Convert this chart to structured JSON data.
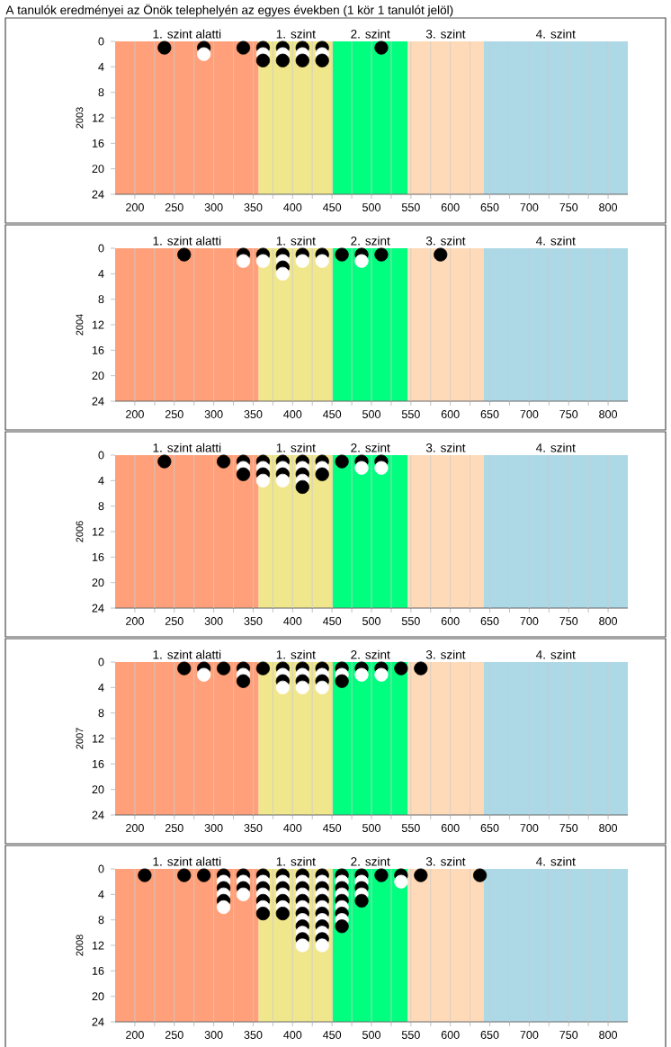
{
  "chart_data": [
    {
      "type": "scatter",
      "title": "A tanulók eredményei az Önök telephelyén az egyes években (1 kör 1 tanulót jelöl)",
      "ylabel": "2003",
      "xlim": [
        175,
        825
      ],
      "ylim": [
        24,
        0
      ],
      "marker": "circle",
      "grid": "x",
      "xticks": [
        200,
        {
          "value": 225,
          "label": null
        },
        250,
        {
          "value": 275,
          "label": null
        },
        300,
        {
          "value": 325,
          "label": null
        },
        350,
        {
          "value": 375,
          "label": null
        },
        400,
        {
          "value": 425,
          "label": null
        },
        450,
        {
          "value": 475,
          "label": null
        },
        500,
        {
          "value": 525,
          "label": null
        },
        550,
        {
          "value": 575,
          "label": null
        },
        600,
        {
          "value": 625,
          "label": null
        },
        650,
        {
          "value": 675,
          "label": null
        },
        700,
        {
          "value": 725,
          "label": null
        },
        750,
        {
          "value": 775,
          "label": null
        },
        800
      ],
      "yticks": [
        0,
        4,
        8,
        12,
        16,
        20,
        24
      ],
      "bands": [
        {
          "axis": "x",
          "from": 175,
          "to": 357,
          "label": "1. szint alatti",
          "color": "#ffa07a"
        },
        {
          "axis": "x",
          "from": 357,
          "to": 451,
          "label": "1. szint",
          "color": "#f0e68c"
        },
        {
          "axis": "x",
          "from": 451,
          "to": 546,
          "label": "2. szint",
          "color": "#00ff7f"
        },
        {
          "axis": "x",
          "from": 546,
          "to": 642,
          "label": "3. szint",
          "color": "#ffdab9"
        },
        {
          "axis": "x",
          "from": 642,
          "to": 825,
          "label": "4. szint",
          "color": "#add8e6"
        }
      ],
      "series": [
        {
          "color": "#000000",
          "x": [
            237.5,
            287.5,
            337.5,
            362.5,
            362.5,
            387.5,
            387.5,
            412.5,
            412.5,
            437.5,
            437.5,
            512.5
          ],
          "values": [
            1,
            1,
            1,
            1,
            3,
            1,
            3,
            1,
            3,
            1,
            3,
            1
          ]
        },
        {
          "color": "#ffffff",
          "x": [
            287.5,
            362.5,
            387.5,
            412.5,
            437.5
          ],
          "values": [
            2,
            2,
            2,
            2,
            2
          ]
        }
      ]
    },
    {
      "type": "scatter",
      "ylabel": "2004",
      "xlim": [
        175,
        825
      ],
      "ylim": [
        24,
        0
      ],
      "marker": "circle",
      "grid": "x",
      "xticks": [
        200,
        {
          "value": 225,
          "label": null
        },
        250,
        {
          "value": 275,
          "label": null
        },
        300,
        {
          "value": 325,
          "label": null
        },
        350,
        {
          "value": 375,
          "label": null
        },
        400,
        {
          "value": 425,
          "label": null
        },
        450,
        {
          "value": 475,
          "label": null
        },
        500,
        {
          "value": 525,
          "label": null
        },
        550,
        {
          "value": 575,
          "label": null
        },
        600,
        {
          "value": 625,
          "label": null
        },
        650,
        {
          "value": 675,
          "label": null
        },
        700,
        {
          "value": 725,
          "label": null
        },
        750,
        {
          "value": 775,
          "label": null
        },
        800
      ],
      "yticks": [
        0,
        4,
        8,
        12,
        16,
        20,
        24
      ],
      "bands": [
        {
          "axis": "x",
          "from": 175,
          "to": 357,
          "label": "1. szint alatti",
          "color": "#ffa07a"
        },
        {
          "axis": "x",
          "from": 357,
          "to": 451,
          "label": "1. szint",
          "color": "#f0e68c"
        },
        {
          "axis": "x",
          "from": 451,
          "to": 546,
          "label": "2. szint",
          "color": "#00ff7f"
        },
        {
          "axis": "x",
          "from": 546,
          "to": 642,
          "label": "3. szint",
          "color": "#ffdab9"
        },
        {
          "axis": "x",
          "from": 642,
          "to": 825,
          "label": "4. szint",
          "color": "#add8e6"
        }
      ],
      "series": [
        {
          "color": "#000000",
          "x": [
            262.5,
            337.5,
            362.5,
            387.5,
            387.5,
            412.5,
            437.5,
            462.5,
            487.5,
            512.5,
            587.5
          ],
          "values": [
            1,
            1,
            1,
            1,
            3,
            1,
            1,
            1,
            1,
            1,
            1
          ]
        },
        {
          "color": "#ffffff",
          "x": [
            337.5,
            362.5,
            387.5,
            387.5,
            412.5,
            437.5,
            487.5
          ],
          "values": [
            2,
            2,
            2,
            4,
            2,
            2,
            2
          ]
        }
      ]
    },
    {
      "type": "scatter",
      "ylabel": "2006",
      "xlim": [
        175,
        825
      ],
      "ylim": [
        24,
        0
      ],
      "marker": "circle",
      "grid": "x",
      "xticks": [
        200,
        {
          "value": 225,
          "label": null
        },
        250,
        {
          "value": 275,
          "label": null
        },
        300,
        {
          "value": 325,
          "label": null
        },
        350,
        {
          "value": 375,
          "label": null
        },
        400,
        {
          "value": 425,
          "label": null
        },
        450,
        {
          "value": 475,
          "label": null
        },
        500,
        {
          "value": 525,
          "label": null
        },
        550,
        {
          "value": 575,
          "label": null
        },
        600,
        {
          "value": 625,
          "label": null
        },
        650,
        {
          "value": 675,
          "label": null
        },
        700,
        {
          "value": 725,
          "label": null
        },
        750,
        {
          "value": 775,
          "label": null
        },
        800
      ],
      "yticks": [
        0,
        4,
        8,
        12,
        16,
        20,
        24
      ],
      "bands": [
        {
          "axis": "x",
          "from": 175,
          "to": 357,
          "label": "1. szint alatti",
          "color": "#ffa07a"
        },
        {
          "axis": "x",
          "from": 357,
          "to": 451,
          "label": "1. szint",
          "color": "#f0e68c"
        },
        {
          "axis": "x",
          "from": 451,
          "to": 546,
          "label": "2. szint",
          "color": "#00ff7f"
        },
        {
          "axis": "x",
          "from": 546,
          "to": 642,
          "label": "3. szint",
          "color": "#ffdab9"
        },
        {
          "axis": "x",
          "from": 642,
          "to": 825,
          "label": "4. szint",
          "color": "#add8e6"
        }
      ],
      "series": [
        {
          "color": "#000000",
          "x": [
            237.5,
            312.5,
            337.5,
            337.5,
            362.5,
            362.5,
            387.5,
            387.5,
            412.5,
            412.5,
            412.5,
            437.5,
            437.5,
            462.5,
            487.5,
            512.5
          ],
          "values": [
            1,
            1,
            1,
            3,
            1,
            3,
            1,
            3,
            1,
            3,
            5,
            1,
            3,
            1,
            1,
            1
          ]
        },
        {
          "color": "#ffffff",
          "x": [
            337.5,
            362.5,
            362.5,
            387.5,
            387.5,
            412.5,
            412.5,
            437.5,
            487.5,
            512.5
          ],
          "values": [
            2,
            2,
            4,
            2,
            4,
            2,
            4,
            2,
            2,
            2
          ]
        }
      ]
    },
    {
      "type": "scatter",
      "ylabel": "2007",
      "xlim": [
        175,
        825
      ],
      "ylim": [
        24,
        0
      ],
      "marker": "circle",
      "grid": "x",
      "xticks": [
        200,
        {
          "value": 225,
          "label": null
        },
        250,
        {
          "value": 275,
          "label": null
        },
        300,
        {
          "value": 325,
          "label": null
        },
        350,
        {
          "value": 375,
          "label": null
        },
        400,
        {
          "value": 425,
          "label": null
        },
        450,
        {
          "value": 475,
          "label": null
        },
        500,
        {
          "value": 525,
          "label": null
        },
        550,
        {
          "value": 575,
          "label": null
        },
        600,
        {
          "value": 625,
          "label": null
        },
        650,
        {
          "value": 675,
          "label": null
        },
        700,
        {
          "value": 725,
          "label": null
        },
        750,
        {
          "value": 775,
          "label": null
        },
        800
      ],
      "yticks": [
        0,
        4,
        8,
        12,
        16,
        20,
        24
      ],
      "bands": [
        {
          "axis": "x",
          "from": 175,
          "to": 357,
          "label": "1. szint alatti",
          "color": "#ffa07a"
        },
        {
          "axis": "x",
          "from": 357,
          "to": 451,
          "label": "1. szint",
          "color": "#f0e68c"
        },
        {
          "axis": "x",
          "from": 451,
          "to": 546,
          "label": "2. szint",
          "color": "#00ff7f"
        },
        {
          "axis": "x",
          "from": 546,
          "to": 642,
          "label": "3. szint",
          "color": "#ffdab9"
        },
        {
          "axis": "x",
          "from": 642,
          "to": 825,
          "label": "4. szint",
          "color": "#add8e6"
        }
      ],
      "series": [
        {
          "color": "#000000",
          "x": [
            262.5,
            287.5,
            312.5,
            337.5,
            337.5,
            362.5,
            387.5,
            387.5,
            412.5,
            412.5,
            437.5,
            437.5,
            462.5,
            462.5,
            487.5,
            512.5,
            537.5,
            562.5
          ],
          "values": [
            1,
            1,
            1,
            1,
            3,
            1,
            1,
            3,
            1,
            3,
            1,
            3,
            1,
            3,
            1,
            1,
            1,
            1
          ]
        },
        {
          "color": "#ffffff",
          "x": [
            287.5,
            337.5,
            387.5,
            387.5,
            412.5,
            412.5,
            437.5,
            437.5,
            462.5,
            487.5,
            512.5
          ],
          "values": [
            2,
            2,
            2,
            4,
            2,
            4,
            2,
            4,
            2,
            2,
            2
          ]
        }
      ]
    },
    {
      "type": "scatter",
      "ylabel": "2008",
      "xlim": [
        175,
        825
      ],
      "ylim": [
        24,
        0
      ],
      "marker": "circle",
      "grid": "x",
      "xticks": [
        200,
        {
          "value": 225,
          "label": null
        },
        250,
        {
          "value": 275,
          "label": null
        },
        300,
        {
          "value": 325,
          "label": null
        },
        350,
        {
          "value": 375,
          "label": null
        },
        400,
        {
          "value": 425,
          "label": null
        },
        450,
        {
          "value": 475,
          "label": null
        },
        500,
        {
          "value": 525,
          "label": null
        },
        550,
        {
          "value": 575,
          "label": null
        },
        600,
        {
          "value": 625,
          "label": null
        },
        650,
        {
          "value": 675,
          "label": null
        },
        700,
        {
          "value": 725,
          "label": null
        },
        750,
        {
          "value": 775,
          "label": null
        },
        800
      ],
      "yticks": [
        0,
        4,
        8,
        12,
        16,
        20,
        24
      ],
      "bands": [
        {
          "axis": "x",
          "from": 175,
          "to": 357,
          "label": "1. szint alatti",
          "color": "#ffa07a"
        },
        {
          "axis": "x",
          "from": 357,
          "to": 451,
          "label": "1. szint",
          "color": "#f0e68c"
        },
        {
          "axis": "x",
          "from": 451,
          "to": 546,
          "label": "2. szint",
          "color": "#00ff7f"
        },
        {
          "axis": "x",
          "from": 546,
          "to": 642,
          "label": "3. szint",
          "color": "#ffdab9"
        },
        {
          "axis": "x",
          "from": 642,
          "to": 825,
          "label": "4. szint",
          "color": "#add8e6"
        }
      ],
      "series": [
        {
          "color": "#000000",
          "x": [
            212.5,
            262.5,
            287.5,
            312.5,
            312.5,
            312.5,
            337.5,
            337.5,
            362.5,
            362.5,
            362.5,
            362.5,
            387.5,
            387.5,
            387.5,
            387.5,
            412.5,
            412.5,
            412.5,
            412.5,
            412.5,
            412.5,
            437.5,
            437.5,
            437.5,
            437.5,
            437.5,
            437.5,
            462.5,
            462.5,
            462.5,
            462.5,
            462.5,
            487.5,
            487.5,
            487.5,
            512.5,
            537.5,
            562.5,
            637.5
          ],
          "values": [
            1,
            1,
            1,
            1,
            3,
            5,
            1,
            3,
            1,
            3,
            5,
            7,
            1,
            3,
            5,
            7,
            1,
            3,
            5,
            7,
            9,
            11,
            1,
            3,
            5,
            7,
            9,
            11,
            1,
            3,
            5,
            7,
            9,
            1,
            3,
            5,
            1,
            1,
            1,
            1
          ]
        },
        {
          "color": "#ffffff",
          "x": [
            312.5,
            312.5,
            312.5,
            337.5,
            337.5,
            362.5,
            362.5,
            362.5,
            387.5,
            387.5,
            387.5,
            412.5,
            412.5,
            412.5,
            412.5,
            412.5,
            412.5,
            437.5,
            437.5,
            437.5,
            437.5,
            437.5,
            437.5,
            462.5,
            462.5,
            462.5,
            462.5,
            487.5,
            487.5,
            537.5
          ],
          "values": [
            2,
            4,
            6,
            2,
            4,
            2,
            4,
            6,
            2,
            4,
            6,
            2,
            4,
            6,
            8,
            10,
            12,
            2,
            4,
            6,
            8,
            10,
            12,
            2,
            4,
            6,
            8,
            2,
            4,
            2
          ]
        }
      ]
    }
  ]
}
